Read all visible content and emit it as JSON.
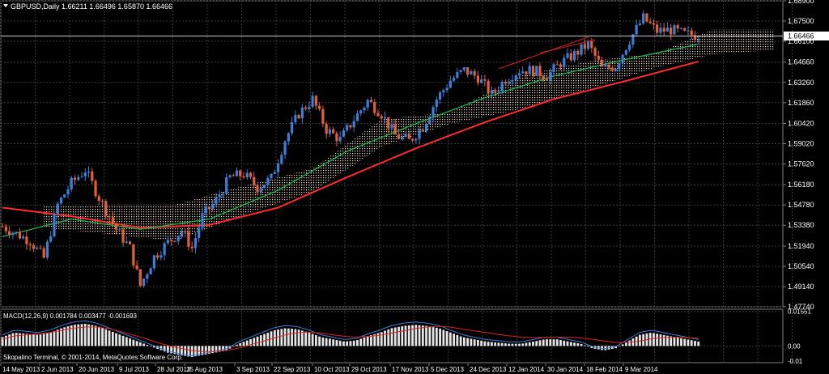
{
  "window": {
    "symbol_title": "GBPUSD,Daily",
    "ohlc": "1.66211 1.66496 1.65870 1.66466",
    "footer_text": "Skopalino Terminal, © 2001-2014, MetaQuotes Software Corp."
  },
  "colors": {
    "background": "#000000",
    "grid": "#3a3a3a",
    "bull_candle": "#3b7dd8",
    "bear_candle": "#e0603a",
    "cloud_bull": "#f0d8c0",
    "cloud_bear": "#e8b090",
    "sma_fast": "#1fb34a",
    "sma_slow": "#ff2a2a",
    "macd_hist": "#e6e6e6",
    "macd_line": "#3b7dd8",
    "signal_line": "#e02020",
    "current_price_bg": "#ffffff"
  },
  "chart_data": {
    "type": "candlestick",
    "ylim": [
      1.4774,
      1.689
    ],
    "price_ticks": [
      "1.68900",
      "1.67500",
      "1.66100",
      "1.64660",
      "1.63260",
      "1.61860",
      "1.60420",
      "1.59020",
      "1.57620",
      "1.56180",
      "1.54780",
      "1.53380",
      "1.51940",
      "1.50540",
      "1.49140",
      "1.47740"
    ],
    "current_price": "1.66466",
    "x_labels": [
      "14 May 2013",
      "2 Jun 2013",
      "20 Jun 2013",
      "9 Jul 2013",
      "28 Jul 2013",
      "15 Aug 2013",
      "3 Sep 2013",
      "22 Sep 2013",
      "10 Oct 2013",
      "29 Oct 2013",
      "17 Nov 2013",
      "5 Dec 2013",
      "24 Dec 2013",
      "12 Jan 2014",
      "30 Jan 2014",
      "18 Feb 2014",
      "9 Mar 2014"
    ],
    "price_path": [
      [
        0,
        1.533
      ],
      [
        8,
        1.523
      ],
      [
        12,
        1.511
      ],
      [
        16,
        1.548
      ],
      [
        20,
        1.563
      ],
      [
        24,
        1.572
      ],
      [
        28,
        1.553
      ],
      [
        33,
        1.531
      ],
      [
        37,
        1.518
      ],
      [
        40,
        1.492
      ],
      [
        44,
        1.512
      ],
      [
        48,
        1.522
      ],
      [
        52,
        1.53
      ],
      [
        55,
        1.518
      ],
      [
        58,
        1.54
      ],
      [
        62,
        1.551
      ],
      [
        66,
        1.567
      ],
      [
        70,
        1.569
      ],
      [
        74,
        1.56
      ],
      [
        78,
        1.566
      ],
      [
        82,
        1.593
      ],
      [
        86,
        1.611
      ],
      [
        90,
        1.621
      ],
      [
        94,
        1.6
      ],
      [
        98,
        1.593
      ],
      [
        102,
        1.607
      ],
      [
        106,
        1.62
      ],
      [
        110,
        1.611
      ],
      [
        114,
        1.596
      ],
      [
        118,
        1.592
      ],
      [
        122,
        1.602
      ],
      [
        126,
        1.621
      ],
      [
        130,
        1.634
      ],
      [
        134,
        1.641
      ],
      [
        138,
        1.636
      ],
      [
        142,
        1.624
      ],
      [
        146,
        1.635
      ],
      [
        150,
        1.641
      ],
      [
        154,
        1.641
      ],
      [
        158,
        1.637
      ],
      [
        162,
        1.646
      ],
      [
        166,
        1.652
      ],
      [
        170,
        1.659
      ],
      [
        174,
        1.642
      ],
      [
        178,
        1.644
      ],
      [
        182,
        1.662
      ],
      [
        186,
        1.677
      ],
      [
        190,
        1.668
      ],
      [
        194,
        1.669
      ],
      [
        198,
        1.666
      ],
      [
        202,
        1.665
      ]
    ],
    "sma_fast": [
      [
        0,
        1.526
      ],
      [
        20,
        1.538
      ],
      [
        40,
        1.531
      ],
      [
        60,
        1.538
      ],
      [
        80,
        1.558
      ],
      [
        100,
        1.585
      ],
      [
        120,
        1.604
      ],
      [
        140,
        1.622
      ],
      [
        160,
        1.637
      ],
      [
        180,
        1.648
      ],
      [
        202,
        1.659
      ]
    ],
    "sma_slow": [
      [
        0,
        1.546
      ],
      [
        20,
        1.54
      ],
      [
        40,
        1.532
      ],
      [
        60,
        1.534
      ],
      [
        80,
        1.546
      ],
      [
        100,
        1.567
      ],
      [
        120,
        1.587
      ],
      [
        140,
        1.605
      ],
      [
        160,
        1.621
      ],
      [
        180,
        1.633
      ],
      [
        202,
        1.647
      ]
    ],
    "cloud_upper": [
      [
        12,
        1.547
      ],
      [
        30,
        1.548
      ],
      [
        50,
        1.548
      ],
      [
        70,
        1.561
      ],
      [
        90,
        1.573
      ],
      [
        110,
        1.607
      ],
      [
        130,
        1.612
      ],
      [
        150,
        1.637
      ],
      [
        170,
        1.647
      ],
      [
        190,
        1.653
      ],
      [
        206,
        1.669
      ],
      [
        224,
        1.669
      ]
    ],
    "cloud_lower": [
      [
        12,
        1.532
      ],
      [
        30,
        1.528
      ],
      [
        50,
        1.523
      ],
      [
        70,
        1.541
      ],
      [
        90,
        1.557
      ],
      [
        110,
        1.588
      ],
      [
        130,
        1.604
      ],
      [
        150,
        1.614
      ],
      [
        170,
        1.628
      ],
      [
        190,
        1.643
      ],
      [
        206,
        1.652
      ],
      [
        224,
        1.655
      ]
    ],
    "channel_lines": [
      [
        [
          144,
          1.642
        ],
        [
          170,
          1.664
        ]
      ],
      [
        [
          156,
          1.653
        ],
        [
          172,
          1.662
        ]
      ]
    ],
    "macd": {
      "title": "MACD(12,26,9) 0.001784 0.003477 -0.001693",
      "ylim": [
        -0.0075,
        0.0165
      ],
      "ticks": [
        "0.01551",
        "0.00",
        "-0.01"
      ],
      "hist": [
        0.004,
        0.006,
        0.0055,
        0.005,
        0.006,
        0.008,
        0.0095,
        0.01,
        0.009,
        0.007,
        0.005,
        0.003,
        0.001,
        -0.001,
        -0.003,
        -0.004,
        -0.005,
        -0.004,
        -0.003,
        -0.002,
        0.001,
        0.003,
        0.005,
        0.007,
        0.008,
        0.0075,
        0.006,
        0.004,
        0.003,
        0.002,
        0.0025,
        0.0045,
        0.006,
        0.008,
        0.009,
        0.0095,
        0.009,
        0.008,
        0.006,
        0.004,
        0.003,
        0.002,
        0.0015,
        0.001,
        0.001,
        0.002,
        0.003,
        0.003,
        0.002,
        0.001,
        -0.001,
        -0.002,
        -0.001,
        0.002,
        0.005,
        0.006,
        0.005,
        0.004,
        0.003,
        0.002
      ],
      "signal": [
        0.003,
        0.0045,
        0.005,
        0.0055,
        0.006,
        0.007,
        0.008,
        0.0085,
        0.0085,
        0.0078,
        0.0065,
        0.005,
        0.0035,
        0.0018,
        0.0002,
        -0.001,
        -0.002,
        -0.0025,
        -0.0024,
        -0.002,
        -0.001,
        0.0005,
        0.002,
        0.0035,
        0.005,
        0.006,
        0.0062,
        0.0058,
        0.005,
        0.0043,
        0.004,
        0.0043,
        0.0048,
        0.0058,
        0.0068,
        0.0078,
        0.0085,
        0.0088,
        0.0085,
        0.0075,
        0.0068,
        0.006,
        0.0052,
        0.0045,
        0.004,
        0.0038,
        0.0038,
        0.004,
        0.004,
        0.0036,
        0.003,
        0.0022,
        0.0016,
        0.0016,
        0.0022,
        0.0032,
        0.0038,
        0.004,
        0.0038,
        0.0034
      ]
    }
  }
}
